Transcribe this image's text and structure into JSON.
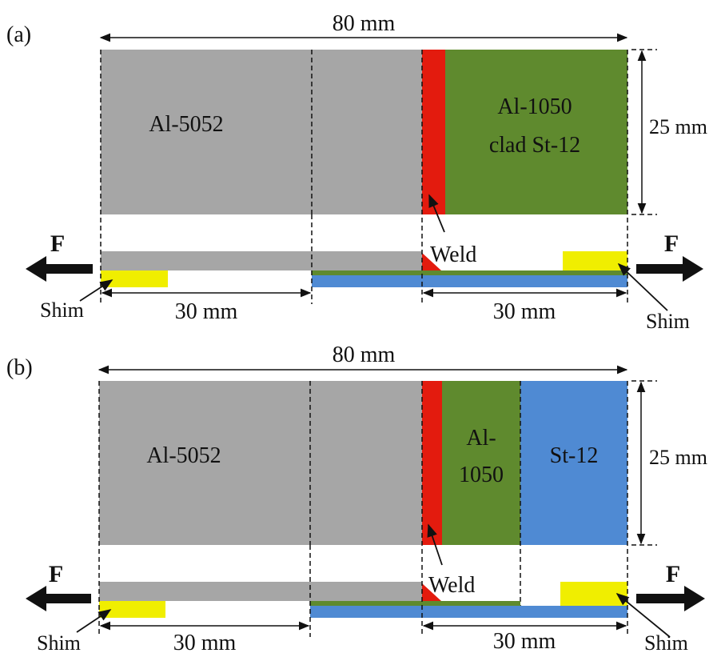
{
  "colors": {
    "al5052": "#a6a6a6",
    "weld": "#e31b0e",
    "al1050": "#5f8a2e",
    "steel": "#4f8ad3",
    "shim": "#f0ee00",
    "line": "#111111"
  },
  "panels": [
    {
      "id": "a",
      "panel_label": "(a)",
      "overall_length": "80 mm",
      "width": "25 mm",
      "left_material": "Al-5052",
      "right_material_line1": "Al-1050",
      "right_material_line2": "clad St-12",
      "weld_label": "Weld",
      "force_left": "F",
      "force_right": "F",
      "shim_left": "Shim",
      "shim_right": "Shim",
      "grip_left": "30 mm",
      "grip_right": "30 mm"
    },
    {
      "id": "b",
      "panel_label": "(b)",
      "overall_length": "80 mm",
      "width": "25 mm",
      "left_material": "Al-5052",
      "mid_material_line1": "Al-",
      "mid_material_line2": "1050",
      "right_material": "St-12",
      "weld_label": "Weld",
      "force_left": "F",
      "force_right": "F",
      "shim_left": "Shim",
      "shim_right": "Shim",
      "grip_left": "30 mm",
      "grip_right": "30 mm"
    }
  ]
}
